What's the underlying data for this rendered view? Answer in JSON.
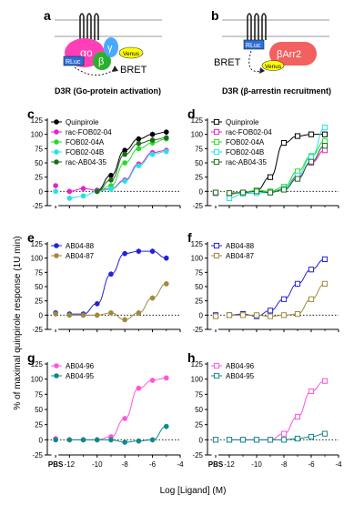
{
  "schematic_a": {
    "letter": "a",
    "alpha": "αo",
    "beta": "β",
    "gamma": "γ",
    "rluc": "RLuc",
    "venus": "Venus",
    "bret": "BRET",
    "caption": "D3R (Go-protein activation)"
  },
  "schematic_b": {
    "letter": "b",
    "barr": "βArr2",
    "rluc": "RLuc",
    "venus": "Venus",
    "bret": "BRET",
    "caption": "D3R (β-arrestin recruitment)"
  },
  "colors": {
    "black": "#000000",
    "magenta": "#e81fd0",
    "green": "#22dd22",
    "cyan": "#22e3e8",
    "darkgreen": "#1c6b1c",
    "blue": "#2222dd",
    "olive": "#a08a3c",
    "pink": "#ff55d8",
    "teal": "#0f8a8a"
  },
  "axis": {
    "ylabel": "% of maximal quinpirole response (1U min)",
    "xlabel": "Log [Ligand] (M)",
    "xticks": [
      "PBS",
      "-12",
      "-10",
      "-8",
      "-6",
      "-4"
    ],
    "yticks": [
      "-25",
      "0",
      "25",
      "50",
      "75",
      "100",
      "125"
    ]
  },
  "chart_data": [
    {
      "panel": "c",
      "type": "line",
      "marker": "filled",
      "ylim": [
        -25,
        125
      ],
      "xlim": [
        -13.6,
        -4
      ],
      "series": [
        {
          "name": "Quinpirole",
          "color": "#000000",
          "x": [
            -10,
            -9,
            -8,
            -7,
            -6,
            -5
          ],
          "y": [
            2,
            28,
            72,
            92,
            100,
            104
          ]
        },
        {
          "name": "rac-FOB02-04",
          "color": "#e81fd0",
          "x": [
            -13,
            -12,
            -11,
            -10,
            -9,
            -8,
            -7,
            -6,
            -5
          ],
          "y": [
            10,
            0,
            5,
            2,
            5,
            20,
            48,
            68,
            72
          ]
        },
        {
          "name": "FOB02-04A",
          "color": "#22dd22",
          "x": [
            -10,
            -9,
            -8,
            -7,
            -6,
            -5
          ],
          "y": [
            0,
            10,
            50,
            75,
            85,
            92
          ]
        },
        {
          "name": "FOB02-04B",
          "color": "#22e3e8",
          "x": [
            -13,
            -12,
            -11,
            -10,
            -9,
            -8,
            -7,
            -6,
            -5
          ],
          "y": [
            0,
            -12,
            -8,
            0,
            4,
            18,
            45,
            65,
            70
          ]
        },
        {
          "name": "rac-AB04-35",
          "color": "#1c6b1c",
          "x": [
            -10,
            -9,
            -8,
            -7,
            -6,
            -5
          ],
          "y": [
            0,
            20,
            65,
            84,
            90,
            94
          ]
        }
      ]
    },
    {
      "panel": "d",
      "type": "line",
      "marker": "open",
      "ylim": [
        -25,
        125
      ],
      "xlim": [
        -13.6,
        -4
      ],
      "series": [
        {
          "name": "Quinpirole",
          "color": "#000000",
          "x": [
            -10,
            -9,
            -8,
            -7,
            -6,
            -5
          ],
          "y": [
            2,
            25,
            85,
            97,
            100,
            100
          ]
        },
        {
          "name": "rac-FOB02-04",
          "color": "#e81fd0",
          "x": [
            -13,
            -12,
            -11,
            -10,
            -9,
            -8,
            -7,
            -6,
            -5
          ],
          "y": [
            -3,
            -5,
            -2,
            0,
            -2,
            5,
            25,
            50,
            72
          ]
        },
        {
          "name": "FOB02-04A",
          "color": "#22dd22",
          "x": [
            -13,
            -12,
            -11,
            -10,
            -9,
            -8,
            -7,
            -6,
            -5
          ],
          "y": [
            -2,
            -4,
            -2,
            2,
            0,
            8,
            35,
            62,
            88
          ]
        },
        {
          "name": "FOB02-04B",
          "color": "#22e3e8",
          "x": [
            -13,
            -12,
            -11,
            -10,
            -9,
            -8,
            -7,
            -6,
            -5
          ],
          "y": [
            -2,
            -12,
            -4,
            -3,
            -2,
            5,
            28,
            60,
            112
          ]
        },
        {
          "name": "rac-AB04-35",
          "color": "#1c6b1c",
          "x": [
            -13,
            -12,
            -11,
            -10,
            -9,
            -8,
            -7,
            -6,
            -5
          ],
          "y": [
            -2,
            -3,
            -2,
            0,
            -2,
            3,
            22,
            52,
            80
          ]
        }
      ]
    },
    {
      "panel": "e",
      "type": "line",
      "marker": "filled",
      "ylim": [
        -25,
        125
      ],
      "xlim": [
        -13.6,
        -4
      ],
      "series": [
        {
          "name": "AB04-88",
          "color": "#2222dd",
          "x": [
            -13,
            -12,
            -11,
            -10,
            -9,
            -8,
            -7,
            -6,
            -5
          ],
          "y": [
            4,
            2,
            2,
            20,
            72,
            108,
            112,
            112,
            100
          ]
        },
        {
          "name": "AB04-87",
          "color": "#a08a3c",
          "x": [
            -13,
            -12,
            -11,
            -10,
            -9,
            -8,
            -7,
            -6,
            -5
          ],
          "y": [
            2,
            0,
            0,
            0,
            4,
            -8,
            4,
            30,
            55
          ]
        }
      ]
    },
    {
      "panel": "f",
      "type": "line",
      "marker": "open",
      "ylim": [
        -25,
        125
      ],
      "xlim": [
        -13.6,
        -4
      ],
      "series": [
        {
          "name": "AB04-88",
          "color": "#2222dd",
          "x": [
            -13,
            -12,
            -11,
            -10,
            -9,
            -8,
            -7,
            -6,
            -5
          ],
          "y": [
            0,
            0,
            2,
            -2,
            8,
            28,
            55,
            80,
            98
          ]
        },
        {
          "name": "AB04-87",
          "color": "#a08a3c",
          "x": [
            -13,
            -12,
            -11,
            -10,
            -9,
            -8,
            -7,
            -6,
            -5
          ],
          "y": [
            -2,
            0,
            0,
            0,
            -2,
            0,
            2,
            28,
            55
          ]
        }
      ]
    },
    {
      "panel": "g",
      "type": "line",
      "marker": "filled",
      "ylim": [
        -25,
        125
      ],
      "xlim": [
        -13.6,
        -4
      ],
      "series": [
        {
          "name": "AB04-96",
          "color": "#ff55d8",
          "x": [
            -13,
            -12,
            -11,
            -10,
            -9,
            -8,
            -7,
            -6,
            -5
          ],
          "y": [
            2,
            0,
            0,
            0,
            5,
            35,
            85,
            98,
            102
          ]
        },
        {
          "name": "AB04-95",
          "color": "#0f8a8a",
          "x": [
            -13,
            -12,
            -11,
            -10,
            -9,
            -8,
            -7,
            -6,
            -5
          ],
          "y": [
            0,
            0,
            0,
            0,
            0,
            -4,
            -2,
            0,
            22
          ]
        }
      ]
    },
    {
      "panel": "h",
      "type": "line",
      "marker": "open",
      "ylim": [
        -25,
        125
      ],
      "xlim": [
        -13.6,
        -4
      ],
      "series": [
        {
          "name": "AB04-96",
          "color": "#ff55d8",
          "x": [
            -13,
            -12,
            -11,
            -10,
            -9,
            -8,
            -7,
            -6,
            -5
          ],
          "y": [
            0,
            0,
            0,
            0,
            0,
            10,
            38,
            80,
            97
          ]
        },
        {
          "name": "AB04-95",
          "color": "#0f8a8a",
          "x": [
            -13,
            -12,
            -11,
            -10,
            -9,
            -8,
            -7,
            -6,
            -5
          ],
          "y": [
            0,
            0,
            0,
            0,
            0,
            0,
            2,
            5,
            10
          ]
        }
      ]
    }
  ]
}
